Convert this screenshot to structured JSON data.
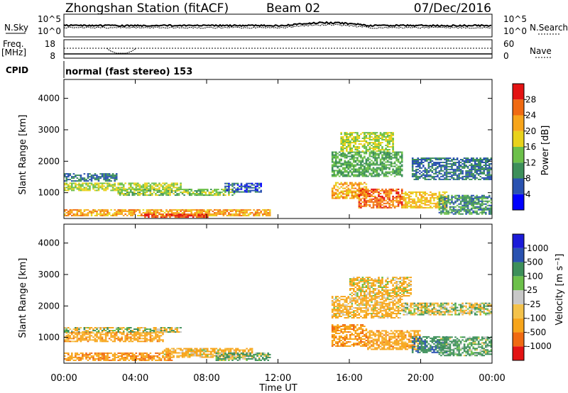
{
  "header": {
    "station": "Zhongshan Station (fitACF)",
    "beam": "Beam 02",
    "date": "07/Dec/2016"
  },
  "status": {
    "nsky_label": "N.Sky",
    "nsky_ticks": [
      "10^5",
      "10^0"
    ],
    "nsearch_label": "N.Search",
    "nsearch_ticks": [
      "10^5",
      "10^0"
    ],
    "freq_label_1": "Freq.",
    "freq_label_2": "[MHz]",
    "freq_ticks": [
      18,
      8
    ],
    "nave_label": "Nave",
    "nave_ticks": [
      60,
      0
    ],
    "cpid_label": "CPID",
    "cpid_text": "normal (fast stereo) 153"
  },
  "colors": {
    "power": [
      "#0000ff",
      "#2a52b0",
      "#3d8f5a",
      "#6cc04a",
      "#e8d21c",
      "#f7a51b",
      "#f06a12",
      "#e31313"
    ],
    "velocity": [
      "#e31313",
      "#f06a12",
      "#f7a51b",
      "#f4c24a",
      "#c8c8c8",
      "#6cc04a",
      "#3d8f5a",
      "#2a52b0",
      "#1b1bd8"
    ]
  },
  "chart_data": [
    {
      "type": "heatmap",
      "panel": "power",
      "ylabel": "Slant Range [km]",
      "ylim": [
        180,
        4600
      ],
      "yticks": [
        1000,
        2000,
        3000,
        4000
      ],
      "xlim": [
        0,
        24
      ],
      "colorbar": {
        "label": "Power [dB]",
        "tick_labels": [
          "4",
          "8",
          "12",
          "16",
          "20",
          "24",
          "28"
        ],
        "range": [
          0,
          32
        ]
      },
      "echo_regions": [
        {
          "t": [
            0.0,
            6.5
          ],
          "r": [
            1050,
            1300
          ],
          "value": 16
        },
        {
          "t": [
            0.0,
            3.0
          ],
          "r": [
            1350,
            1600
          ],
          "value": 8
        },
        {
          "t": [
            3.0,
            9.5
          ],
          "r": [
            900,
            1100
          ],
          "value": 14
        },
        {
          "t": [
            9.0,
            11.0
          ],
          "r": [
            1000,
            1300
          ],
          "value": 6
        },
        {
          "t": [
            0.0,
            11.5
          ],
          "r": [
            250,
            450
          ],
          "value": 22
        },
        {
          "t": [
            4.5,
            8.0
          ],
          "r": [
            200,
            330
          ],
          "value": 28
        },
        {
          "t": [
            15.0,
            17.0
          ],
          "r": [
            800,
            1300
          ],
          "value": 22
        },
        {
          "t": [
            16.5,
            19.0
          ],
          "r": [
            500,
            1100
          ],
          "value": 26
        },
        {
          "t": [
            19.0,
            21.5
          ],
          "r": [
            500,
            1000
          ],
          "value": 20
        },
        {
          "t": [
            15.0,
            19.0
          ],
          "r": [
            1500,
            2300
          ],
          "value": 12
        },
        {
          "t": [
            15.5,
            18.5
          ],
          "r": [
            2300,
            2900
          ],
          "value": 16
        },
        {
          "t": [
            19.5,
            24.0
          ],
          "r": [
            1400,
            2100
          ],
          "value": 8
        },
        {
          "t": [
            21.0,
            24.0
          ],
          "r": [
            300,
            900
          ],
          "value": 10
        }
      ]
    },
    {
      "type": "heatmap",
      "panel": "velocity",
      "ylabel": "Slant Range [km]",
      "xlabel": "Time UT",
      "ylim": [
        180,
        4600
      ],
      "yticks": [
        1000,
        2000,
        3000,
        4000
      ],
      "xlim": [
        0,
        24
      ],
      "xticks": [
        "00:00",
        "04:00",
        "08:00",
        "12:00",
        "16:00",
        "20:00",
        "00:00"
      ],
      "colorbar": {
        "label": "Velocity [m s⁻¹]",
        "tick_labels": [
          "-1000",
          "-500",
          "-100",
          "-25",
          "25",
          "100",
          "500",
          "1000"
        ],
        "range": [
          -1250,
          1250
        ]
      },
      "echo_regions": [
        {
          "t": [
            0.0,
            6.5
          ],
          "r": [
            1150,
            1300
          ],
          "value": 0
        },
        {
          "t": [
            0.0,
            5.5
          ],
          "r": [
            850,
            1150
          ],
          "value": -300
        },
        {
          "t": [
            0.0,
            6.0
          ],
          "r": [
            250,
            500
          ],
          "value": -400
        },
        {
          "t": [
            5.5,
            10.5
          ],
          "r": [
            350,
            650
          ],
          "value": -200
        },
        {
          "t": [
            8.5,
            11.5
          ],
          "r": [
            250,
            500
          ],
          "value": 150
        },
        {
          "t": [
            15.0,
            17.0
          ],
          "r": [
            700,
            1400
          ],
          "value": -400
        },
        {
          "t": [
            17.0,
            20.0
          ],
          "r": [
            600,
            1200
          ],
          "value": -300
        },
        {
          "t": [
            19.5,
            21.5
          ],
          "r": [
            500,
            1000
          ],
          "value": 400
        },
        {
          "t": [
            15.0,
            19.0
          ],
          "r": [
            1600,
            2300
          ],
          "value": -200
        },
        {
          "t": [
            16.0,
            19.5
          ],
          "r": [
            2300,
            2900
          ],
          "value": -150
        },
        {
          "t": [
            19.0,
            24.0
          ],
          "r": [
            1700,
            2100
          ],
          "value": 0
        },
        {
          "t": [
            21.0,
            24.0
          ],
          "r": [
            400,
            1000
          ],
          "value": 200
        }
      ]
    }
  ]
}
